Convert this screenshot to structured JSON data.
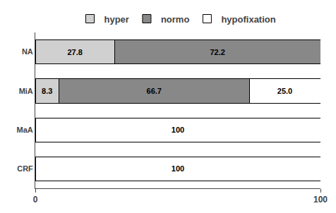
{
  "chart_data": {
    "type": "bar",
    "orientation": "horizontal",
    "stacked": true,
    "categories": [
      "CRF",
      "MaA",
      "MiA",
      "NA"
    ],
    "series": [
      {
        "name": "hyper",
        "color": "#d0d0d0",
        "values": [
          0,
          0,
          8.3,
          27.8
        ],
        "value_labels": [
          null,
          null,
          "8.3",
          "27.8"
        ]
      },
      {
        "name": "normo",
        "color": "#888888",
        "values": [
          0,
          0,
          66.7,
          72.2
        ],
        "value_labels": [
          null,
          null,
          "66.7",
          "72.2"
        ]
      },
      {
        "name": "hypofixation",
        "color": "#ffffff",
        "values": [
          100,
          100,
          25.0,
          0.0
        ],
        "value_labels": [
          "100",
          "100",
          "25.0",
          null
        ]
      }
    ],
    "xlim": [
      0,
      100
    ],
    "xticks": [
      0,
      100
    ],
    "data_labels": true,
    "grid": false,
    "legend": "top"
  }
}
